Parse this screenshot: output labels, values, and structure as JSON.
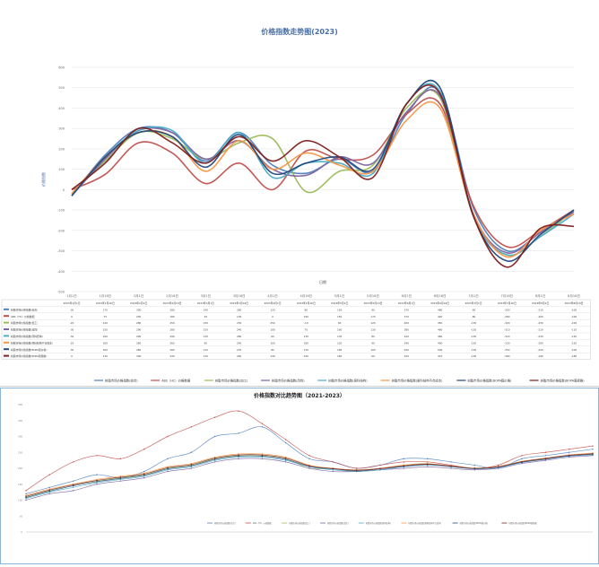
{
  "charts": {
    "top": {
      "title": "价格指数走势图(2023)",
      "ylabel": "价格指数",
      "xlabel": "日期",
      "ylim": [
        -500,
        600
      ],
      "yticks": [
        -500,
        -400,
        -300,
        -200,
        -100,
        0,
        100,
        200,
        300,
        400,
        500,
        600
      ],
      "categories": [
        "1月1日",
        "1月16日",
        "2月1日",
        "2月16日",
        "3月1日",
        "3月16日",
        "4月1日",
        "4月16日",
        "5月1日",
        "5月16日",
        "6月1日",
        "6月16日",
        "7月1日",
        "7月16日",
        "8月1日",
        "8月16日"
      ],
      "table_header": [
        "2023年1月1日",
        "2023年1月16日",
        "2023年2月1日",
        "2023年2月16日",
        "2023年3月1日",
        "2023年3月16日",
        "2023年4月1日",
        "2023年4月16日",
        "2023年5月1日",
        "2023年5月16日",
        "2023年6月1日",
        "2023年6月16日",
        "2023年7月1日",
        "2023年7月16日",
        "2023年8月1日",
        "2023年8月16日"
      ],
      "colors": [
        "#4f81bd",
        "#c0504d",
        "#9bbb59",
        "#8064a2",
        "#4bacc6",
        "#f79646",
        "#1f497d",
        "#7f1f1f"
      ]
    },
    "bottom": {
      "title": "价格指数对比趋势图（2021-2023）",
      "ylim": [
        0,
        400
      ]
    }
  },
  "chart_data": [
    {
      "type": "line",
      "title": "价格指数走势图(2023)",
      "xlabel": "日期",
      "ylabel": "价格指数",
      "ylim": [
        -500,
        600
      ],
      "grid": true,
      "legend_position": "bottom",
      "categories": [
        "1月1日",
        "1月16日",
        "2月1日",
        "2月16日",
        "3月1日",
        "3月16日",
        "4月1日",
        "4月16日",
        "5月1日",
        "5月16日",
        "6月1日",
        "6月16日",
        "7月1日",
        "7月16日",
        "8月1日",
        "8月16日"
      ],
      "series": [
        {
          "name": "树脂市场价格指数(综合)",
          "values": [
            -30,
            170,
            300,
            280,
            140,
            280,
            120,
            80,
            150,
            90,
            370,
            480,
            -90,
            -300,
            -210,
            -100
          ]
        },
        {
          "name": "ABS（HC）价格数据",
          "values": [
            0,
            75,
            230,
            180,
            30,
            130,
            0,
            190,
            150,
            170,
            370,
            420,
            -80,
            -280,
            -200,
            -100
          ]
        },
        {
          "name": "树脂市场价格指数(加工)",
          "values": [
            -20,
            140,
            280,
            250,
            150,
            230,
            250,
            -10,
            90,
            120,
            400,
            450,
            -130,
            -320,
            -230,
            -100
          ]
        },
        {
          "name": "树脂市场价格指数(改性)",
          "values": [
            -30,
            150,
            290,
            280,
            150,
            240,
            100,
            70,
            160,
            130,
            380,
            460,
            -120,
            -310,
            -210,
            -110
          ]
        },
        {
          "name": "树脂市场价格指数(原料结构)",
          "values": [
            -30,
            160,
            290,
            290,
            130,
            280,
            60,
            130,
            130,
            80,
            420,
            480,
            -130,
            -320,
            -230,
            -120
          ]
        },
        {
          "name": "树脂市场价格指数(原料结构不合成本)",
          "values": [
            -20,
            160,
            280,
            260,
            90,
            240,
            100,
            180,
            120,
            90,
            340,
            400,
            -120,
            -330,
            -200,
            -120
          ]
        },
        {
          "name": "树脂市场价格指数(BOPA膜价格)",
          "values": [
            -30,
            160,
            280,
            260,
            110,
            270,
            80,
            130,
            160,
            100,
            420,
            500,
            -130,
            -350,
            -220,
            -100
          ]
        },
        {
          "name": "树脂市场价格指数(BOPA膜规格)",
          "values": [
            0,
            130,
            300,
            230,
            130,
            260,
            140,
            240,
            160,
            60,
            420,
            470,
            -130,
            -380,
            -190,
            -180
          ]
        }
      ]
    },
    {
      "type": "line",
      "title": "价格指数对比趋势图（2021-2023）",
      "ylim": [
        0,
        400
      ],
      "grid": false,
      "legend_position": "bottom",
      "series": [
        {
          "name": "树脂市场价格指数(综合)",
          "values": [
            120,
            140,
            160,
            180,
            170,
            190,
            230,
            250,
            300,
            310,
            330,
            280,
            230,
            220,
            200,
            210,
            230,
            230,
            220,
            210,
            200,
            230,
            240,
            250,
            260
          ]
        },
        {
          "name": "ABS（HC）价格数据",
          "values": [
            130,
            180,
            220,
            240,
            230,
            260,
            300,
            330,
            360,
            380,
            340,
            290,
            240,
            220,
            200,
            210,
            220,
            220,
            210,
            200,
            210,
            240,
            250,
            260,
            270
          ]
        },
        {
          "name": "树脂市场价格指数(加工)",
          "values": [
            110,
            130,
            150,
            160,
            170,
            180,
            200,
            210,
            230,
            240,
            240,
            230,
            200,
            200,
            190,
            200,
            210,
            215,
            205,
            200,
            205,
            220,
            230,
            240,
            245
          ]
        },
        {
          "name": "树脂市场价格指数(改性)",
          "values": [
            100,
            120,
            130,
            150,
            160,
            170,
            190,
            200,
            220,
            230,
            230,
            220,
            200,
            190,
            190,
            195,
            200,
            205,
            200,
            195,
            200,
            215,
            225,
            235,
            240
          ]
        },
        {
          "name": "树脂市场价格指数(原料结构)",
          "values": [
            105,
            125,
            140,
            155,
            165,
            175,
            195,
            205,
            225,
            235,
            235,
            225,
            205,
            195,
            190,
            195,
            205,
            210,
            205,
            198,
            202,
            218,
            228,
            238,
            242
          ]
        },
        {
          "name": "树脂市场价格指数(原料结构不合成本)",
          "values": [
            115,
            135,
            150,
            165,
            175,
            185,
            205,
            215,
            235,
            245,
            245,
            235,
            210,
            200,
            195,
            200,
            210,
            214,
            208,
            200,
            206,
            222,
            232,
            242,
            248
          ]
        },
        {
          "name": "树脂市场价格指数(BOPA膜价格)",
          "values": [
            108,
            128,
            145,
            158,
            168,
            178,
            198,
            208,
            228,
            238,
            238,
            228,
            206,
            198,
            192,
            198,
            206,
            212,
            206,
            199,
            204,
            219,
            229,
            239,
            244
          ]
        },
        {
          "name": "树脂市场价格指数(BOPA膜规格)",
          "values": [
            112,
            132,
            148,
            162,
            172,
            182,
            202,
            212,
            232,
            242,
            242,
            232,
            208,
            199,
            194,
            199,
            208,
            213,
            207,
            200,
            205,
            221,
            231,
            241,
            246
          ]
        }
      ]
    }
  ]
}
